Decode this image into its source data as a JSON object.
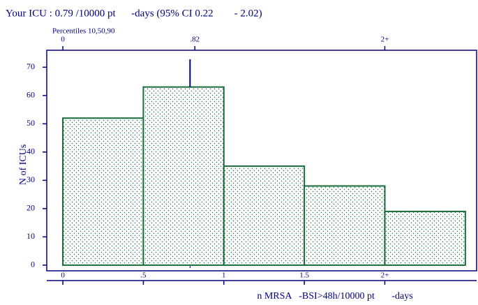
{
  "chart_data": {
    "type": "histogram",
    "title": "Your ICU : 0.79 /10000 pt      -days (95% CI 0.22        - 2.02)",
    "top_axis_label": "Percentiles 10,50,90",
    "top_xticks": [
      0,
      {
        "value": 0.82,
        "label": ".82"
      },
      {
        "value": 2,
        "label": "2+"
      }
    ],
    "marker": 0.79,
    "bins": [
      0,
      0.5,
      1,
      1.5,
      2,
      2.5
    ],
    "values": [
      52,
      63,
      35,
      28,
      19
    ],
    "color": "#1a6b3a",
    "xlabel": "n MRSA   -BSI>48h/10000 pt       -days",
    "ylabel": "N of ICUs",
    "xlim": [
      -0.1,
      2.57
    ],
    "ylim": [
      -2,
      76
    ],
    "xticks": [
      0,
      {
        "value": 0.5,
        "label": ".5"
      },
      1,
      1.5,
      {
        "value": 2,
        "label": "2+"
      }
    ],
    "yticks": [
      0,
      10,
      20,
      30,
      40,
      50,
      60,
      70
    ]
  }
}
